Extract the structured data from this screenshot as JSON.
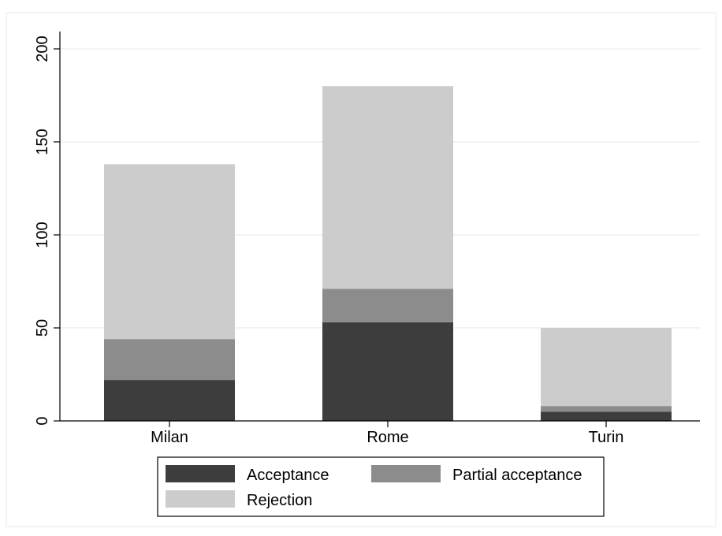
{
  "chart_data": {
    "type": "bar",
    "stacked": true,
    "categories": [
      "Milan",
      "Rome",
      "Turin"
    ],
    "series": [
      {
        "name": "Acceptance",
        "values": [
          22,
          53,
          5
        ],
        "color": "#3d3d3d"
      },
      {
        "name": "Partial acceptance",
        "values": [
          22,
          18,
          3
        ],
        "color": "#8c8c8c"
      },
      {
        "name": "Rejection",
        "values": [
          94,
          109,
          42
        ],
        "color": "#cccccc"
      }
    ],
    "title": "",
    "xlabel": "",
    "ylabel": "",
    "ylim": [
      0,
      200
    ],
    "yticks": [
      0,
      50,
      100,
      150,
      200
    ],
    "grid": true,
    "grid_color": "#eaf2f3",
    "frame_color": "#eaf2f3",
    "legend_placement": "bottom"
  }
}
